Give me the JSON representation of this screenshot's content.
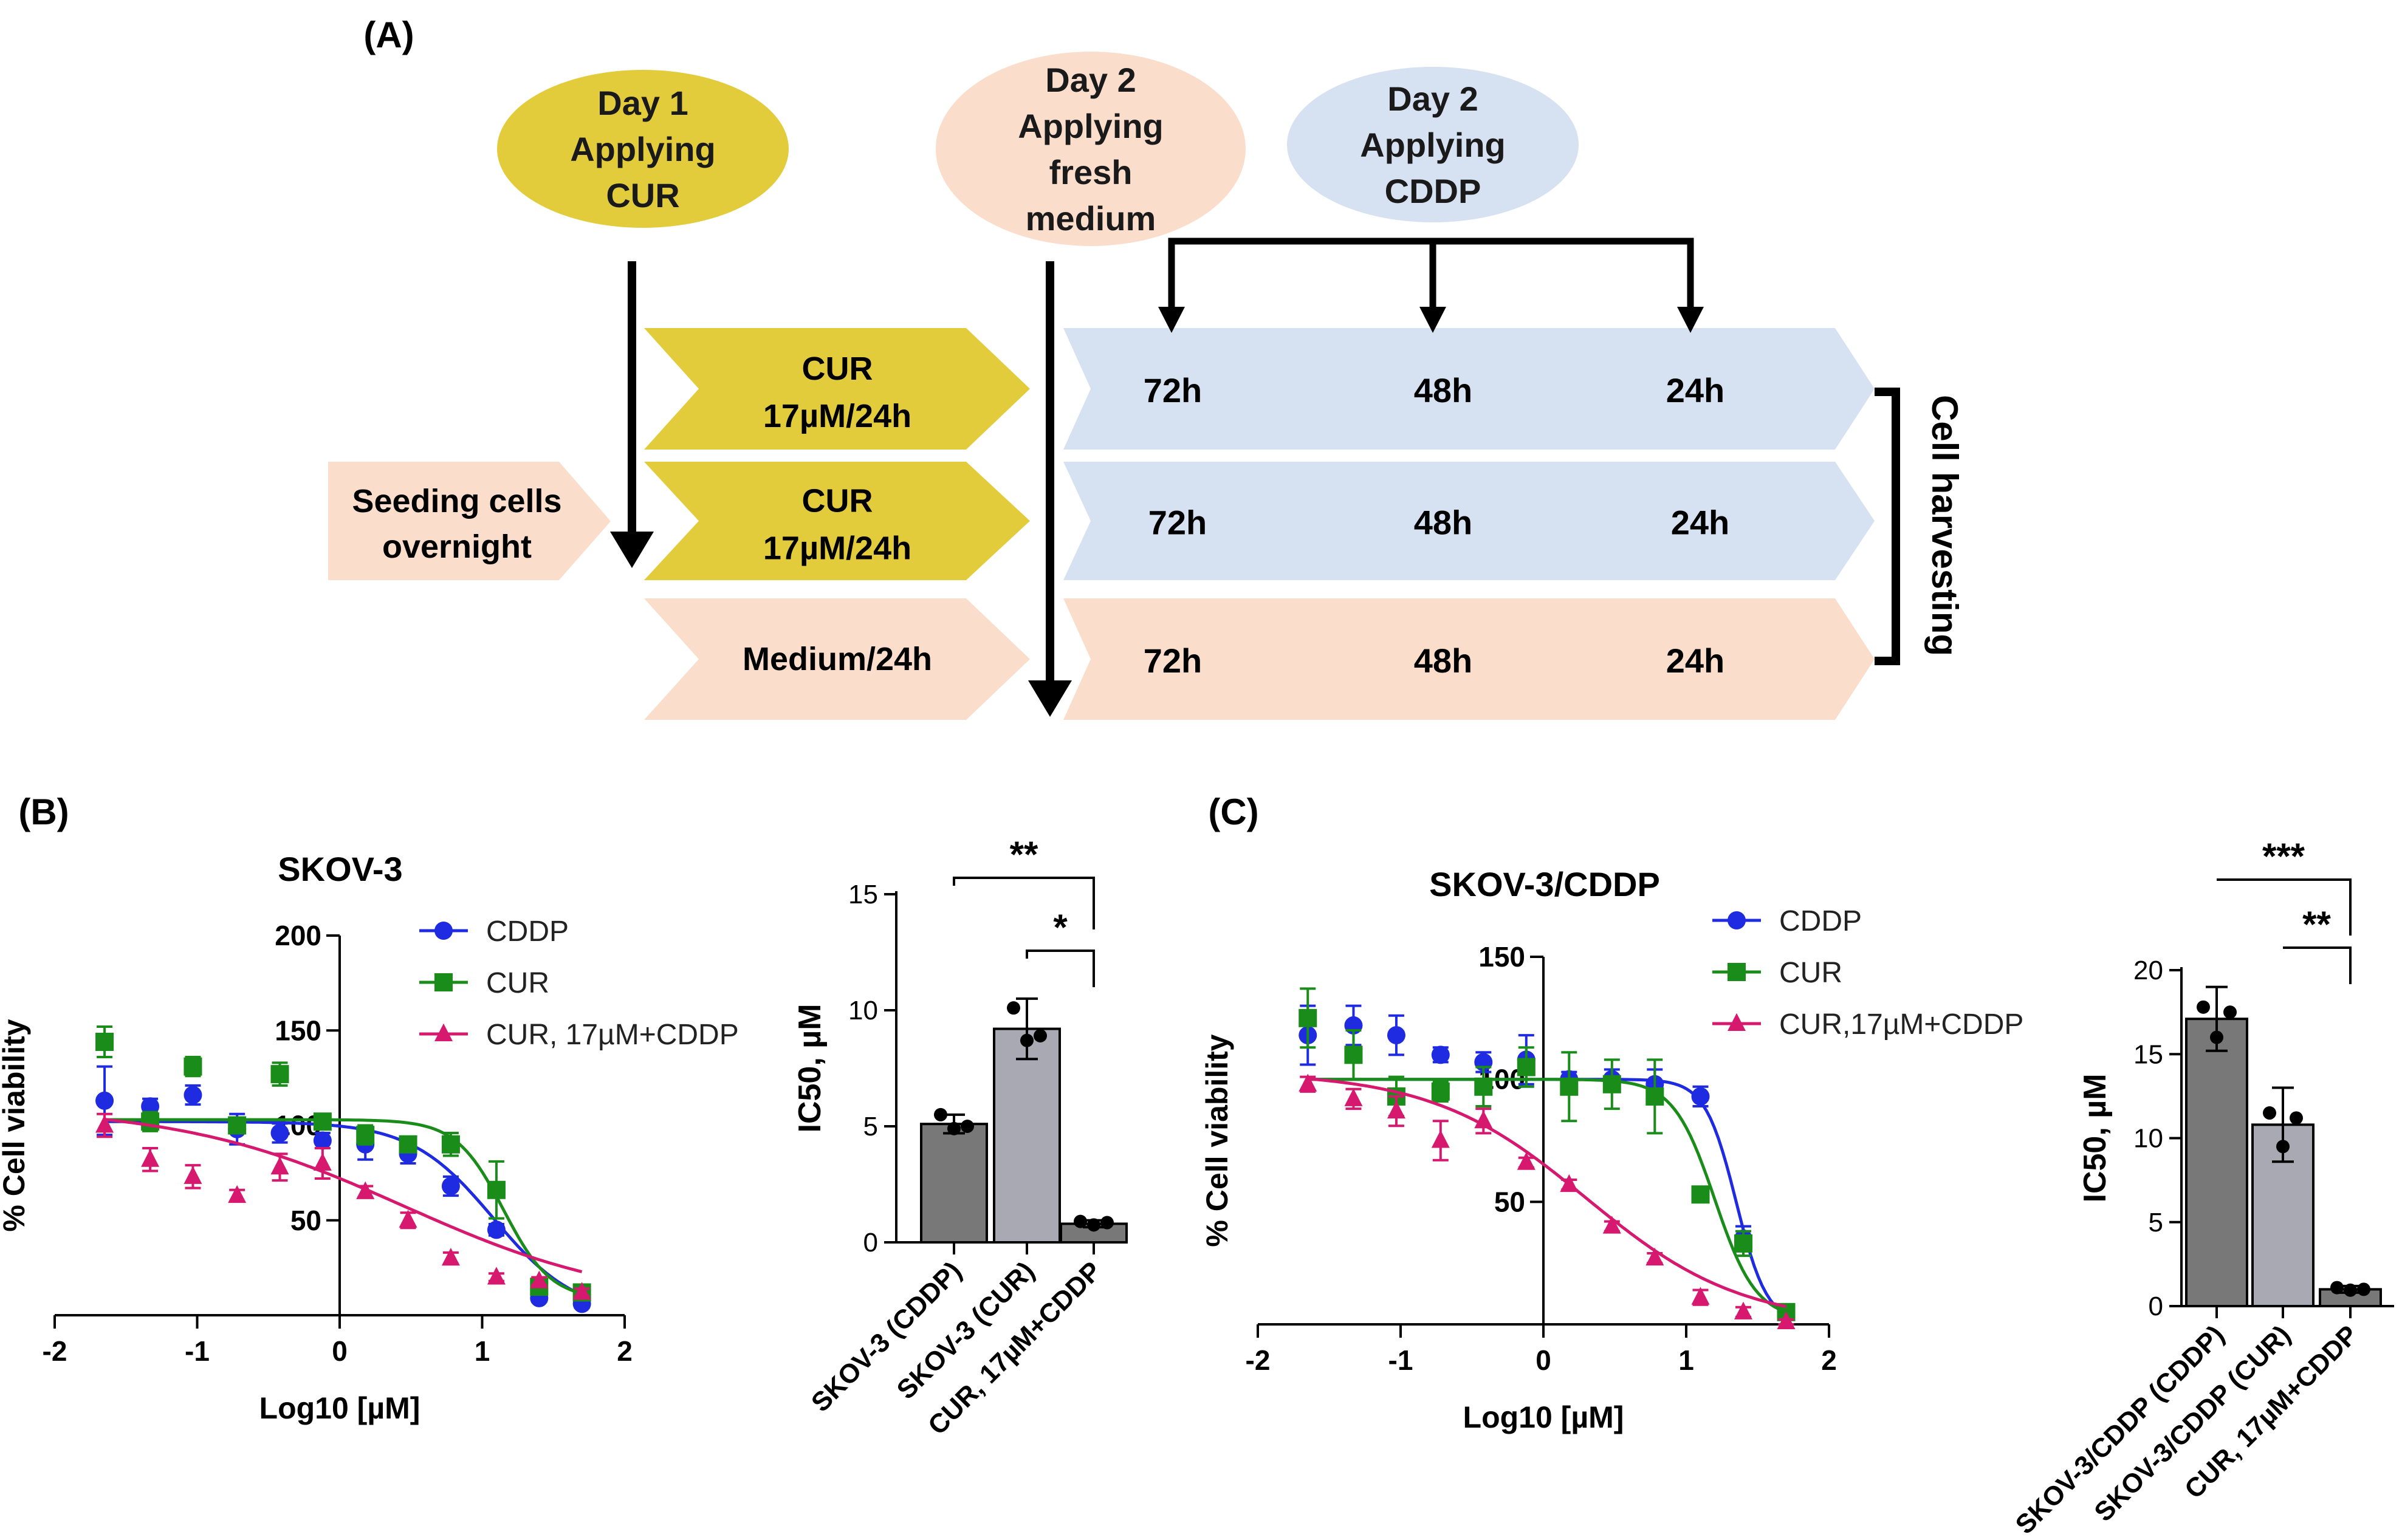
{
  "panel_labels": {
    "a": "(A)",
    "b": "(B)",
    "c": "(C)"
  },
  "schema": {
    "ovals": [
      {
        "lines": [
          "Day 1",
          "Applying",
          "CUR"
        ],
        "fill": "#E3CC3B"
      },
      {
        "lines": [
          "Day 2",
          "Applying",
          "fresh",
          "medium"
        ],
        "fill": "#FADDCB"
      },
      {
        "lines": [
          "Day 2",
          "Applying",
          "CDDP"
        ],
        "fill": "#D6E1F1"
      }
    ],
    "seeding": [
      "Seeding cells",
      "overnight"
    ],
    "rows": [
      {
        "first": [
          "CUR",
          "17µM/24h"
        ],
        "first_fill": "#E3CC3B",
        "times": [
          "72h",
          "48h",
          "24h"
        ],
        "second_fill": "#D6E1F1"
      },
      {
        "first": [
          "CUR",
          "17µM/24h"
        ],
        "first_fill": "#E3CC3B",
        "times": [
          "72h",
          "48h",
          "24h"
        ],
        "second_fill": "#D6E1F1"
      },
      {
        "first": [
          "Medium/24h"
        ],
        "first_fill": "#FADDCB",
        "times": [
          "72h",
          "48h",
          "24h"
        ],
        "second_fill": "#FADDCB"
      }
    ],
    "harvest": "Cell harvesting"
  },
  "colors": {
    "cddp": "#1F2BE0",
    "cur": "#1A8C1A",
    "combo": "#D6186E",
    "bar_dark": "#787878",
    "bar_light": "#A9A9B3"
  },
  "chart_data": [
    {
      "type": "scatter",
      "title": "SKOV-3",
      "xlabel": "Log10 [µM]",
      "ylabel": "% Cell viability",
      "xlim": [
        -2,
        2
      ],
      "ylim": [
        0,
        200
      ],
      "xticks": [
        "-2",
        "-1",
        "0",
        "1",
        "2"
      ],
      "yticks": [
        "50",
        "100",
        "150",
        "200"
      ],
      "legend_position": "top-right",
      "series": [
        {
          "name": "CDDP",
          "color": "#1F2BE0",
          "marker": "circle",
          "x": [
            -1.65,
            -1.33,
            -1.03,
            -0.72,
            -0.42,
            -0.12,
            0.18,
            0.48,
            0.78,
            1.1,
            1.4,
            1.7
          ],
          "y": [
            113,
            110,
            116,
            98,
            96,
            92,
            90,
            85,
            68,
            45,
            9,
            6
          ],
          "err": [
            18,
            4,
            5,
            8,
            5,
            4,
            8,
            5,
            5,
            3,
            2,
            2
          ],
          "fit": {
            "top": 102,
            "bottom": 0,
            "logec50": 1.08,
            "hill": 1.5
          }
        },
        {
          "name": "CUR",
          "color": "#1A8C1A",
          "marker": "square",
          "x": [
            -1.65,
            -1.33,
            -1.03,
            -0.72,
            -0.42,
            -0.12,
            0.18,
            0.48,
            0.78,
            1.1,
            1.4,
            1.7
          ],
          "y": [
            144,
            102,
            131,
            100,
            127,
            102,
            95,
            90,
            90,
            66,
            15,
            12
          ],
          "err": [
            8,
            5,
            5,
            4,
            6,
            3,
            5,
            4,
            6,
            15,
            3,
            2
          ],
          "fit": {
            "top": 103,
            "bottom": 8,
            "logec50": 1.15,
            "hill": 2.6
          }
        },
        {
          "name": "CUR, 17µM+CDDP",
          "color": "#D6186E",
          "marker": "triangle",
          "x": [
            -1.65,
            -1.33,
            -1.03,
            -0.72,
            -0.42,
            -0.12,
            0.18,
            0.48,
            0.78,
            1.1,
            1.4,
            1.7
          ],
          "y": [
            100,
            82,
            73,
            63,
            78,
            80,
            65,
            50,
            30,
            20,
            18,
            12
          ],
          "err": [
            6,
            6,
            6,
            3,
            7,
            8,
            3,
            4,
            3,
            2,
            2,
            2
          ],
          "fit": {
            "top": 110,
            "bottom": 5,
            "logec50": 0.45,
            "hill": 0.55
          }
        }
      ]
    },
    {
      "type": "bar",
      "ylabel": "IC50, µM",
      "ylim": [
        0,
        15
      ],
      "yticks": [
        "0",
        "5",
        "10",
        "15"
      ],
      "categories": [
        "SKOV-3 (CDDP)",
        "SKOV-3 (CUR)",
        "CUR, 17µM+CDDP"
      ],
      "values": [
        5.1,
        9.2,
        0.8
      ],
      "errors": [
        0.4,
        1.3,
        0.15
      ],
      "points": [
        [
          5.5,
          4.9,
          5.0
        ],
        [
          10.1,
          8.7,
          8.9
        ],
        [
          0.9,
          0.75,
          0.85
        ]
      ],
      "significance": [
        {
          "from": 0,
          "to": 2,
          "label": "**"
        },
        {
          "from": 1,
          "to": 2,
          "label": "*"
        }
      ]
    },
    {
      "type": "scatter",
      "title": "SKOV-3/CDDP",
      "xlabel": "Log10 [µM]",
      "ylabel": "% Cell viability",
      "xlim": [
        -2,
        2
      ],
      "ylim": [
        0,
        150
      ],
      "xticks": [
        "-2",
        "-1",
        "0",
        "1",
        "2"
      ],
      "yticks": [
        "50",
        "100",
        "150"
      ],
      "legend_position": "top-right",
      "series": [
        {
          "name": "CDDP",
          "color": "#1F2BE0",
          "marker": "circle",
          "x": [
            -1.65,
            -1.33,
            -1.03,
            -0.72,
            -0.42,
            -0.12,
            0.18,
            0.48,
            0.78,
            1.1,
            1.4,
            1.7
          ],
          "y": [
            118,
            122,
            118,
            110,
            107,
            108,
            100,
            100,
            98,
            93,
            35,
            5
          ],
          "err": [
            12,
            8,
            8,
            3,
            4,
            10,
            3,
            4,
            6,
            4,
            5,
            3
          ],
          "fit": {
            "top": 100,
            "bottom": 0,
            "logec50": 1.35,
            "hill": 4.0
          }
        },
        {
          "name": "CUR",
          "color": "#1A8C1A",
          "marker": "square",
          "x": [
            -1.65,
            -1.33,
            -1.03,
            -0.72,
            -0.42,
            -0.12,
            0.18,
            0.48,
            0.78,
            1.1,
            1.4,
            1.7
          ],
          "y": [
            125,
            110,
            93,
            95,
            97,
            105,
            97,
            98,
            93,
            53,
            33,
            5
          ],
          "err": [
            12,
            10,
            8,
            4,
            8,
            8,
            14,
            10,
            15,
            3,
            5,
            3
          ],
          "fit": {
            "top": 100,
            "bottom": 2,
            "logec50": 1.2,
            "hill": 3.0
          }
        },
        {
          "name": "CUR,17µM+CDDP",
          "color": "#D6186E",
          "marker": "triangle",
          "x": [
            -1.65,
            -1.33,
            -1.03,
            -0.72,
            -0.42,
            -0.12,
            0.18,
            0.48,
            0.78,
            1.1,
            1.4,
            1.7
          ],
          "y": [
            98,
            92,
            87,
            75,
            83,
            66,
            57,
            40,
            27,
            11,
            5,
            1
          ],
          "err": [
            3,
            4,
            6,
            8,
            5,
            2,
            2,
            2,
            2,
            3,
            2,
            1
          ],
          "fit": {
            "top": 103,
            "bottom": 0,
            "logec50": 0.3,
            "hill": 0.8
          }
        }
      ]
    },
    {
      "type": "bar",
      "ylabel": "IC50, µM",
      "ylim": [
        0,
        20
      ],
      "yticks": [
        "0",
        "5",
        "10",
        "15",
        "20"
      ],
      "categories": [
        "SKOV-3/CDDP (CDDP)",
        "SKOV-3/CDDP (CUR)",
        "CUR, 17µM+CDDP"
      ],
      "values": [
        17.1,
        10.8,
        1.0
      ],
      "errors": [
        1.9,
        2.2,
        0.2
      ],
      "points": [
        [
          17.8,
          16.0,
          17.5
        ],
        [
          11.5,
          9.5,
          11.2
        ],
        [
          1.1,
          0.95,
          1.0
        ]
      ],
      "significance": [
        {
          "from": 0,
          "to": 2,
          "label": "***"
        },
        {
          "from": 1,
          "to": 2,
          "label": "**"
        }
      ]
    }
  ]
}
